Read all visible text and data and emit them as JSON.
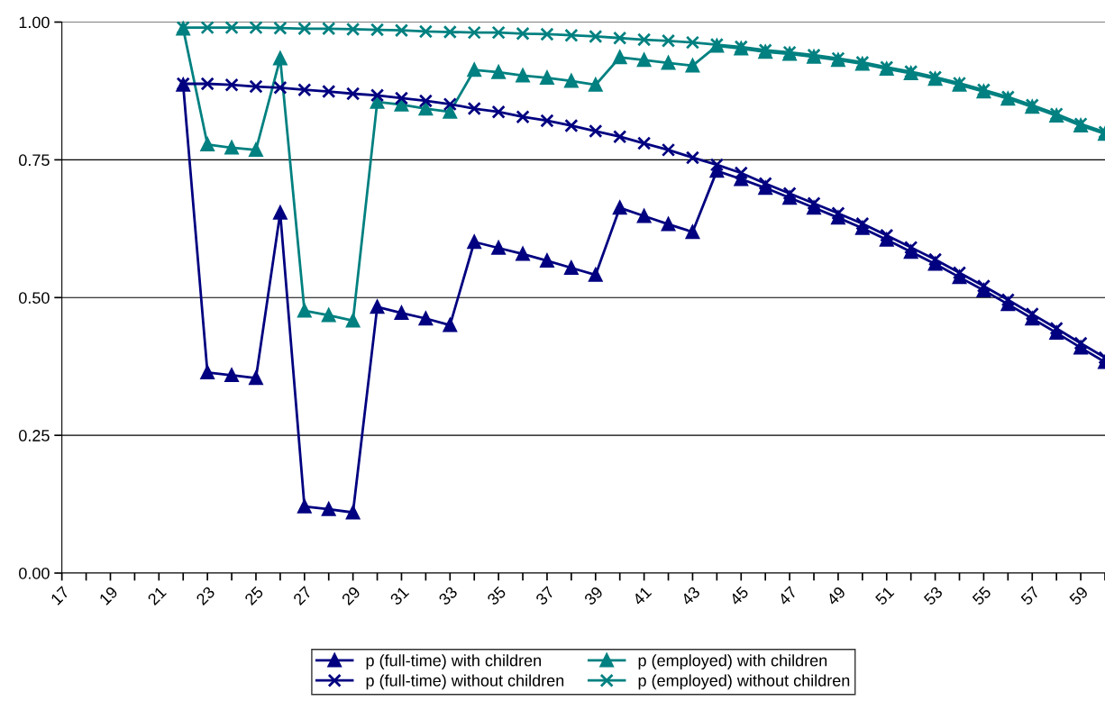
{
  "chart_data": {
    "type": "line",
    "categories": [
      "17",
      null,
      "19",
      null,
      "21",
      null,
      "23",
      null,
      "25",
      null,
      "27",
      null,
      "29",
      null,
      "31",
      null,
      "33",
      null,
      "35",
      null,
      "37",
      null,
      "39",
      null,
      "41",
      null,
      "43",
      null,
      "45",
      null,
      "47",
      null,
      "49",
      null,
      "51",
      null,
      "53",
      null,
      "55",
      null,
      "57",
      null,
      "59",
      null
    ],
    "series": [
      {
        "name": "p (full-time) with children",
        "color": "#000080",
        "marker": "triangle",
        "values": [
          null,
          null,
          null,
          null,
          null,
          0.886,
          0.364,
          0.359,
          0.354,
          0.654,
          0.121,
          0.116,
          0.11,
          0.483,
          0.472,
          0.462,
          0.45,
          0.601,
          0.59,
          0.579,
          0.567,
          0.554,
          0.541,
          0.663,
          0.648,
          0.633,
          0.619,
          0.73,
          0.715,
          0.699,
          0.681,
          0.663,
          0.645,
          0.626,
          0.605,
          0.583,
          0.561,
          0.537,
          0.513,
          0.488,
          0.462,
          0.436,
          0.409,
          0.383
        ]
      },
      {
        "name": "p (employed) with children",
        "color": "#008080",
        "marker": "triangle",
        "values": [
          null,
          null,
          null,
          null,
          null,
          0.988,
          0.778,
          0.772,
          0.768,
          0.934,
          0.476,
          0.468,
          0.458,
          0.855,
          0.85,
          0.843,
          0.837,
          0.913,
          0.909,
          0.903,
          0.899,
          0.893,
          0.886,
          0.936,
          0.931,
          0.926,
          0.921,
          0.957,
          0.952,
          0.946,
          0.942,
          0.937,
          0.931,
          0.924,
          0.915,
          0.907,
          0.897,
          0.886,
          0.874,
          0.861,
          0.846,
          0.83,
          0.812,
          0.797
        ]
      },
      {
        "name": "p (full-time) without children",
        "color": "#000080",
        "marker": "cross",
        "values": [
          null,
          null,
          null,
          null,
          null,
          0.888,
          0.888,
          0.886,
          0.883,
          0.881,
          0.877,
          0.874,
          0.87,
          0.867,
          0.862,
          0.857,
          0.851,
          0.843,
          0.837,
          0.828,
          0.821,
          0.812,
          0.802,
          0.792,
          0.78,
          0.768,
          0.754,
          0.741,
          0.726,
          0.707,
          0.689,
          0.671,
          0.653,
          0.634,
          0.613,
          0.591,
          0.569,
          0.545,
          0.521,
          0.496,
          0.47,
          0.444,
          0.417,
          0.391
        ]
      },
      {
        "name": "p (employed) without children",
        "color": "#008080",
        "marker": "cross",
        "values": [
          null,
          null,
          null,
          null,
          null,
          0.99,
          0.99,
          0.99,
          0.99,
          0.989,
          0.988,
          0.988,
          0.987,
          0.986,
          0.985,
          0.983,
          0.982,
          0.981,
          0.981,
          0.979,
          0.978,
          0.976,
          0.974,
          0.971,
          0.968,
          0.966,
          0.963,
          0.959,
          0.955,
          0.949,
          0.945,
          0.94,
          0.934,
          0.927,
          0.918,
          0.91,
          0.9,
          0.889,
          0.877,
          0.864,
          0.849,
          0.833,
          0.815,
          0.8
        ]
      }
    ],
    "ylim": [
      0,
      1
    ],
    "yticks": [
      {
        "value": 0,
        "label": "0.00"
      },
      {
        "value": 0.25,
        "label": "0.25"
      },
      {
        "value": 0.5,
        "label": "0.50"
      },
      {
        "value": 0.75,
        "label": "0.75"
      },
      {
        "value": 1,
        "label": "1.00"
      }
    ],
    "grid": "y",
    "legend": "bottom",
    "line_style": "solid"
  }
}
